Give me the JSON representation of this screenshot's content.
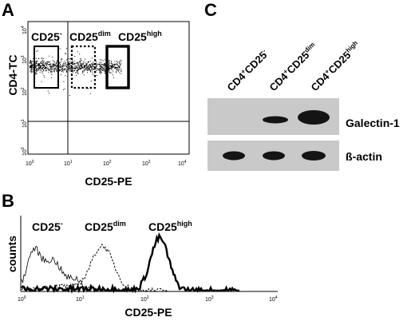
{
  "panels": {
    "a": {
      "letter": "A",
      "ylabel": "CD4-TC",
      "xlabel": "CD25-PE",
      "tick_base": "10",
      "x_exponents": [
        "0",
        "1",
        "2",
        "3",
        "4"
      ],
      "y_exponents": [
        "0",
        "1",
        "2",
        "3",
        "4"
      ],
      "gates": [
        {
          "base": "CD25",
          "sup": "-",
          "style": "solid"
        },
        {
          "base": "CD25",
          "sup": "dim",
          "style": "dotted"
        },
        {
          "base": "CD25",
          "sup": "high",
          "style": "solid-thick"
        }
      ]
    },
    "b": {
      "letter": "B",
      "ylabel": "counts",
      "xlabel": "CD25-PE",
      "tick_base": "10",
      "x_exponents": [
        "0",
        "1",
        "2",
        "3",
        "4"
      ],
      "series": [
        {
          "base": "CD25",
          "sup": "-",
          "line": "thin"
        },
        {
          "base": "CD25",
          "sup": "dim",
          "line": "dashed"
        },
        {
          "base": "CD25",
          "sup": "high",
          "line": "thick"
        }
      ]
    },
    "c": {
      "letter": "C",
      "lanes": [
        {
          "prefix": "CD4",
          "prefix_sup": "+",
          "base": "CD25",
          "sup": "-"
        },
        {
          "prefix": "CD4",
          "prefix_sup": "+",
          "base": "CD25",
          "sup": "dim"
        },
        {
          "prefix": "CD4",
          "prefix_sup": "+",
          "base": "CD25",
          "sup": "high"
        }
      ],
      "blots": [
        {
          "label": "Galectin-1",
          "band_intensity": [
            0,
            0.55,
            1.0
          ]
        },
        {
          "label": "ß-actin",
          "band_intensity": [
            0.8,
            0.8,
            0.85
          ]
        }
      ]
    }
  },
  "colors": {
    "ink": "#000000",
    "blot_bg": "#c9c9c9",
    "band": "#141414"
  }
}
